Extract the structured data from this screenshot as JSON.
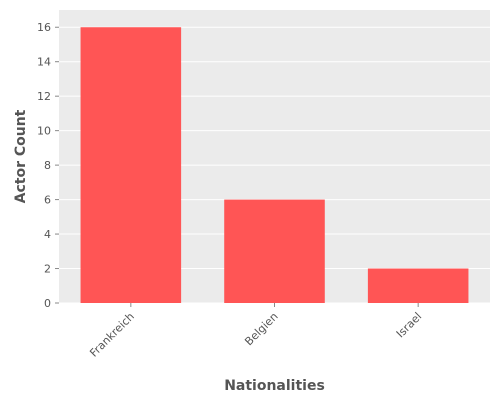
{
  "chart_data": {
    "type": "bar",
    "categories": [
      "Frankreich",
      "Belgien",
      "Israel"
    ],
    "values": [
      16,
      6,
      2
    ],
    "title": "",
    "xlabel": "Nationalities",
    "ylabel": "Actor Count",
    "ylim": [
      0,
      17
    ],
    "yticks": [
      0,
      2,
      4,
      6,
      8,
      10,
      12,
      14,
      16
    ],
    "grid": true,
    "legend": "none",
    "colors": {
      "bar": "#ff5555",
      "panel_background": "#ebebeb",
      "grid": "#ffffff",
      "text": "#555555"
    }
  }
}
